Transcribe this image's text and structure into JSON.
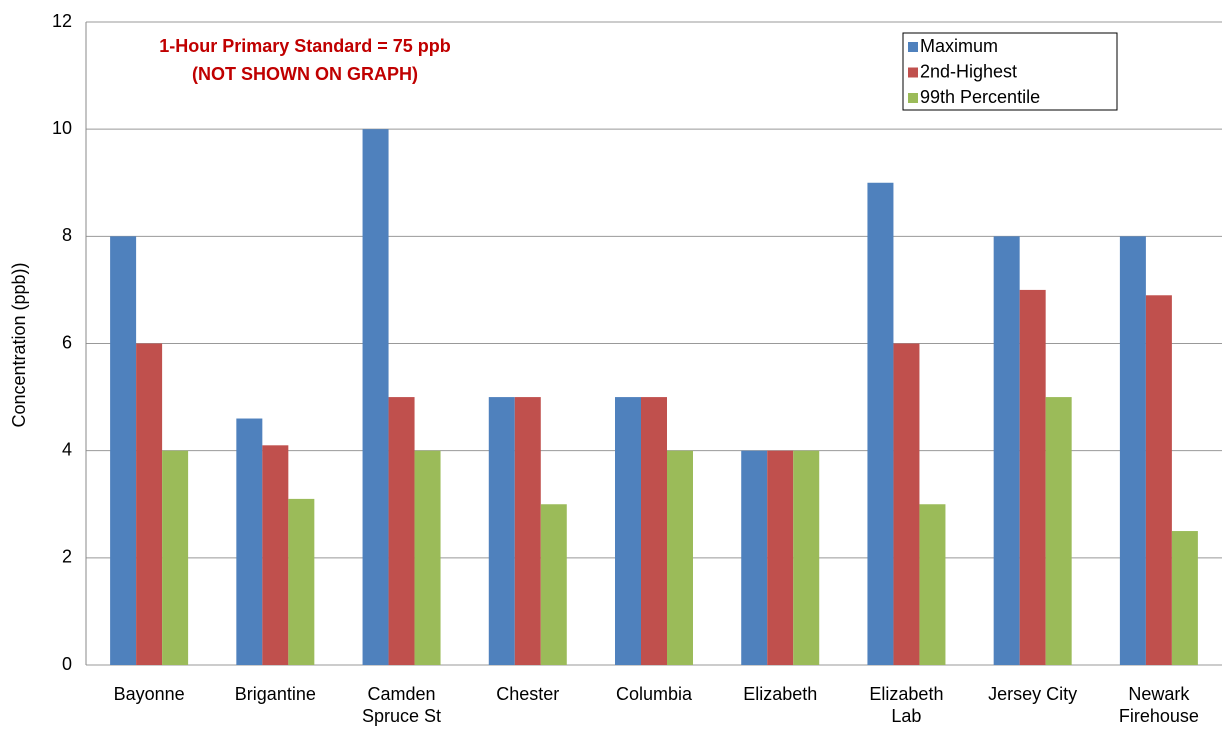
{
  "chart_data": {
    "type": "bar",
    "y_label": "Concentration (ppb))",
    "annotation": [
      "1-Hour Primary Standard = 75 ppb",
      "(NOT SHOWN ON GRAPH)"
    ],
    "categories": [
      "Bayonne",
      "Brigantine",
      "Camden\nSpruce St",
      "Chester",
      "Columbia",
      "Elizabeth",
      "Elizabeth\nLab",
      "Jersey City",
      "Newark\nFirehouse"
    ],
    "series": [
      {
        "name": "Maximum",
        "color": "#4f81bd",
        "values": [
          8,
          4.6,
          10,
          5,
          5,
          4,
          9,
          8,
          8
        ]
      },
      {
        "name": "2nd-Highest",
        "color": "#c0504d",
        "values": [
          6,
          4.1,
          5,
          5,
          5,
          4,
          6,
          7,
          6.9
        ]
      },
      {
        "name": "99th Percentile",
        "color": "#9bbb59",
        "values": [
          4,
          3.1,
          4,
          3,
          4,
          4,
          3,
          5,
          2.5
        ]
      }
    ],
    "ylim": [
      0,
      12
    ],
    "yticks": [
      0,
      2,
      4,
      6,
      8,
      10,
      12
    ],
    "grid": true,
    "legend": "top-right"
  }
}
